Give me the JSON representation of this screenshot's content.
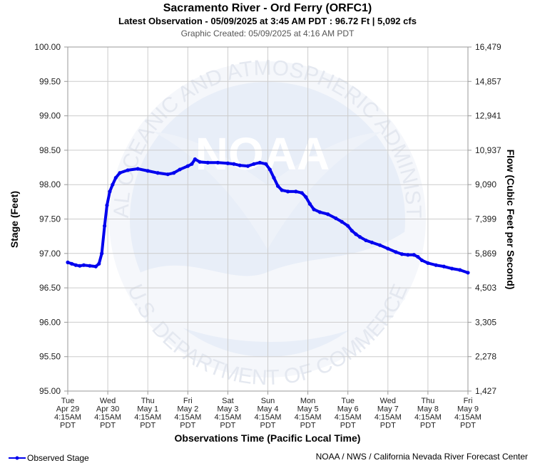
{
  "chart_data": {
    "type": "line",
    "title": "Sacramento River - Ord Ferry (ORFC1)",
    "subtitle": "Latest Observation - 05/09/2025 at 3:45 AM PDT : 96.72 Ft | 5,092 cfs",
    "created": "Graphic Created: 05/09/2025 at 4:16 AM PDT",
    "xlabel": "Observations Time (Pacific Local Time)",
    "ylabel_left": "Stage (Feet)",
    "ylabel_right": "Flow (Cubic Feet per Second)",
    "ylim": [
      95.0,
      100.0
    ],
    "grid": true,
    "legend_position": "bottom-left",
    "x_ticks": [
      {
        "day": "Tue",
        "date": "Apr 29",
        "time": "4:15AM",
        "tz": "PDT"
      },
      {
        "day": "Wed",
        "date": "Apr 30",
        "time": "4:15AM",
        "tz": "PDT"
      },
      {
        "day": "Thu",
        "date": "May 1",
        "time": "4:15AM",
        "tz": "PDT"
      },
      {
        "day": "Fri",
        "date": "May 2",
        "time": "4:15AM",
        "tz": "PDT"
      },
      {
        "day": "Sat",
        "date": "May 3",
        "time": "4:15AM",
        "tz": "PDT"
      },
      {
        "day": "Sun",
        "date": "May 4",
        "time": "4:15AM",
        "tz": "PDT"
      },
      {
        "day": "Mon",
        "date": "May 5",
        "time": "4:15AM",
        "tz": "PDT"
      },
      {
        "day": "Tue",
        "date": "May 6",
        "time": "4:15AM",
        "tz": "PDT"
      },
      {
        "day": "Wed",
        "date": "May 7",
        "time": "4:15AM",
        "tz": "PDT"
      },
      {
        "day": "Thu",
        "date": "May 8",
        "time": "4:15AM",
        "tz": "PDT"
      },
      {
        "day": "Fri",
        "date": "May 9",
        "time": "4:15AM",
        "tz": "PDT"
      }
    ],
    "y_ticks_left": [
      "100.00",
      "99.50",
      "99.00",
      "98.50",
      "98.00",
      "97.50",
      "97.00",
      "96.50",
      "96.00",
      "95.50",
      "95.00"
    ],
    "y_ticks_right": [
      "16,479",
      "14,857",
      "12,941",
      "10,937",
      "9,090",
      "7,399",
      "5,869",
      "4,503",
      "3,305",
      "2,278",
      "1,427"
    ],
    "series": [
      {
        "name": "Observed Stage",
        "color": "#0000ee",
        "points": [
          [
            0.0,
            96.87
          ],
          [
            0.1,
            96.85
          ],
          [
            0.2,
            96.83
          ],
          [
            0.3,
            96.82
          ],
          [
            0.4,
            96.83
          ],
          [
            0.55,
            96.82
          ],
          [
            0.7,
            96.81
          ],
          [
            0.78,
            96.85
          ],
          [
            0.85,
            97.0
          ],
          [
            0.92,
            97.4
          ],
          [
            0.98,
            97.7
          ],
          [
            1.05,
            97.9
          ],
          [
            1.12,
            98.0
          ],
          [
            1.2,
            98.1
          ],
          [
            1.3,
            98.17
          ],
          [
            1.5,
            98.21
          ],
          [
            1.75,
            98.23
          ],
          [
            2.0,
            98.2
          ],
          [
            2.25,
            98.17
          ],
          [
            2.5,
            98.15
          ],
          [
            2.65,
            98.17
          ],
          [
            2.8,
            98.22
          ],
          [
            3.0,
            98.27
          ],
          [
            3.1,
            98.3
          ],
          [
            3.18,
            98.37
          ],
          [
            3.3,
            98.33
          ],
          [
            3.5,
            98.32
          ],
          [
            3.75,
            98.32
          ],
          [
            4.0,
            98.31
          ],
          [
            4.15,
            98.3
          ],
          [
            4.3,
            98.28
          ],
          [
            4.5,
            98.27
          ],
          [
            4.65,
            98.3
          ],
          [
            4.8,
            98.32
          ],
          [
            4.95,
            98.3
          ],
          [
            5.05,
            98.22
          ],
          [
            5.15,
            98.1
          ],
          [
            5.25,
            97.98
          ],
          [
            5.35,
            97.92
          ],
          [
            5.5,
            97.9
          ],
          [
            5.7,
            97.9
          ],
          [
            5.85,
            97.88
          ],
          [
            5.95,
            97.82
          ],
          [
            6.05,
            97.72
          ],
          [
            6.15,
            97.64
          ],
          [
            6.3,
            97.6
          ],
          [
            6.5,
            97.57
          ],
          [
            6.7,
            97.51
          ],
          [
            6.85,
            97.46
          ],
          [
            7.0,
            97.4
          ],
          [
            7.1,
            97.33
          ],
          [
            7.2,
            97.28
          ],
          [
            7.3,
            97.24
          ],
          [
            7.45,
            97.19
          ],
          [
            7.6,
            97.16
          ],
          [
            7.8,
            97.12
          ],
          [
            8.0,
            97.07
          ],
          [
            8.2,
            97.02
          ],
          [
            8.35,
            96.99
          ],
          [
            8.5,
            96.98
          ],
          [
            8.65,
            96.98
          ],
          [
            8.75,
            96.95
          ],
          [
            8.85,
            96.9
          ],
          [
            9.0,
            96.86
          ],
          [
            9.2,
            96.83
          ],
          [
            9.4,
            96.81
          ],
          [
            9.6,
            96.78
          ],
          [
            9.8,
            96.76
          ],
          [
            10.0,
            96.72
          ]
        ]
      }
    ]
  },
  "legend": {
    "label": "Observed Stage"
  },
  "footer": {
    "credit": "NOAA / NWS / California Nevada River Forecast Center"
  },
  "watermark": {
    "text_top": "NATIONAL OCEANIC AND ATMOSPHERIC ADMINISTRATION",
    "text_bottom": "U.S. DEPARTMENT OF COMMERCE",
    "logo": "NOAA"
  }
}
